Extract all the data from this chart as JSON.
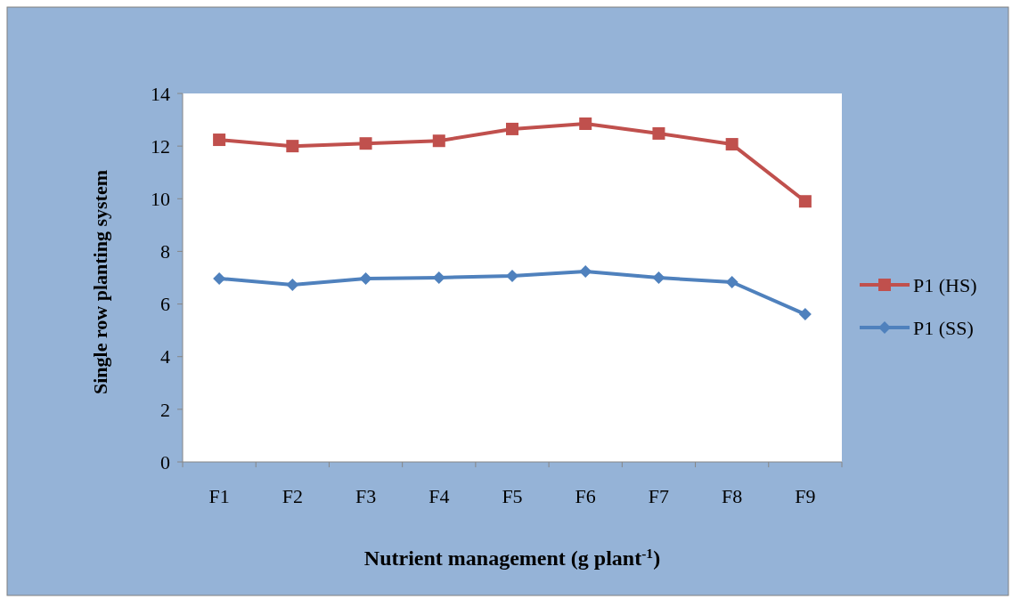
{
  "chart_data": {
    "type": "line",
    "xlabel": "Nutrient management (g plant$^{-1}$)",
    "ylabel": "Single row planting system",
    "categories": [
      "F1",
      "F2",
      "F3",
      "F4",
      "F5",
      "F6",
      "F7",
      "F8",
      "F9"
    ],
    "series": [
      {
        "name": "P1 (HS)",
        "color": "#c0504d",
        "marker": "square",
        "values": [
          12.24,
          12.0,
          12.1,
          12.2,
          12.65,
          12.85,
          12.48,
          12.07,
          9.9
        ]
      },
      {
        "name": "P1 (SS)",
        "color": "#4f81bd",
        "marker": "diamond",
        "values": [
          6.97,
          6.73,
          6.97,
          7.0,
          7.07,
          7.24,
          7.0,
          6.83,
          5.61
        ]
      }
    ],
    "ylim": [
      0,
      14
    ],
    "yticks": [
      0,
      2,
      4,
      6,
      8,
      10,
      12,
      14
    ],
    "grid": false,
    "legend": "right"
  }
}
